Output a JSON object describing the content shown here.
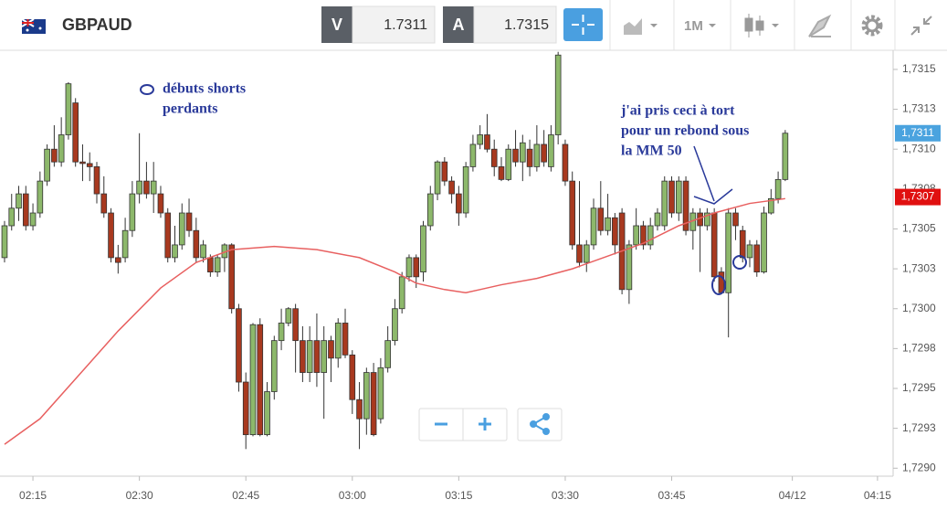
{
  "toolbar": {
    "symbol": "GBPAUD",
    "sell_label": "V",
    "sell_price": "1.7311",
    "buy_label": "A",
    "buy_price": "1.7315",
    "timeframe": "1M"
  },
  "chart_data": {
    "type": "candlestick",
    "up_color": "#8db86b",
    "down_color": "#a8391f",
    "open": [
      1.73032,
      1.73052,
      1.73063,
      1.73072,
      1.73052,
      1.7306,
      1.7308,
      1.731,
      1.73092,
      1.73109,
      1.73129,
      1.73092,
      1.73091,
      1.73089,
      1.73072,
      1.7306,
      1.73032,
      1.73032,
      1.73049,
      1.73072,
      1.7308,
      1.73072,
      1.73072,
      1.7306,
      1.73032,
      1.7304,
      1.7306,
      1.73049,
      1.73032,
      1.73032,
      1.73023,
      1.73032,
      1.7304,
      1.73,
      1.72954,
      1.72921,
      1.7299,
      1.72921,
      1.72948,
      1.7298,
      1.72991,
      1.73,
      1.7298,
      1.7296,
      1.7298,
      1.7296,
      1.7298,
      1.72969,
      1.72991,
      1.72971,
      1.72943,
      1.72931,
      1.7296,
      1.72931,
      1.72963,
      1.7298,
      1.73,
      1.7302,
      1.73032,
      1.73023,
      1.73052,
      1.73072,
      1.73092,
      1.7308,
      1.73072,
      1.7306,
      1.73089,
      1.73103,
      1.73109,
      1.731,
      1.73089,
      1.73081,
      1.731,
      1.73092,
      1.731,
      1.73089,
      1.73103,
      1.73089,
      1.73109,
      1.73103,
      1.7308,
      1.7304,
      1.73029,
      1.7304,
      1.73063,
      1.73049,
      1.73057,
      1.7306,
      1.73012,
      1.7304,
      1.73052,
      1.7304,
      1.73052,
      1.73052,
      1.7308,
      1.7306,
      1.7308,
      1.73049,
      1.7306,
      1.73052,
      1.7306,
      1.73023,
      1.7301,
      1.7306,
      1.73049,
      1.73032,
      1.7304,
      1.73023,
      1.7306,
      1.73069,
      1.73081
    ],
    "high": [
      1.73055,
      1.73072,
      1.73077,
      1.73077,
      1.73066,
      1.73086,
      1.73103,
      1.73115,
      1.7312,
      1.73142,
      1.73132,
      1.73103,
      1.73098,
      1.73092,
      1.73083,
      1.73063,
      1.7304,
      1.73057,
      1.7308,
      1.7311,
      1.73092,
      1.73092,
      1.73077,
      1.73063,
      1.73052,
      1.73066,
      1.73069,
      1.73057,
      1.73043,
      1.73034,
      1.73034,
      1.73041,
      1.73041,
      1.73003,
      1.7296,
      1.72991,
      1.72994,
      1.72954,
      1.72983,
      1.73,
      1.73001,
      1.73003,
      1.72989,
      1.72989,
      1.72997,
      1.72989,
      1.72983,
      1.72994,
      1.73,
      1.72974,
      1.72954,
      1.72963,
      1.72966,
      1.72969,
      1.72989,
      1.73006,
      1.73023,
      1.73034,
      1.73034,
      1.73055,
      1.73077,
      1.73093,
      1.73095,
      1.73083,
      1.73077,
      1.73092,
      1.73109,
      1.73115,
      1.73122,
      1.73106,
      1.73095,
      1.73103,
      1.73112,
      1.73109,
      1.73106,
      1.73115,
      1.73112,
      1.73115,
      1.73161,
      1.73106,
      1.73086,
      1.7308,
      1.73043,
      1.73069,
      1.7308,
      1.73072,
      1.7306,
      1.73063,
      1.73043,
      1.73063,
      1.73055,
      1.73057,
      1.73063,
      1.73083,
      1.73083,
      1.73083,
      1.73083,
      1.73063,
      1.73063,
      1.73063,
      1.73063,
      1.73026,
      1.73063,
      1.73063,
      1.73052,
      1.73043,
      1.73043,
      1.73064,
      1.73075,
      1.73086,
      1.73112
    ],
    "low": [
      1.73029,
      1.73049,
      1.73055,
      1.73049,
      1.73049,
      1.73057,
      1.73077,
      1.73089,
      1.73089,
      1.73106,
      1.73089,
      1.7308,
      1.7308,
      1.73066,
      1.73057,
      1.73029,
      1.73022,
      1.73029,
      1.73045,
      1.73066,
      1.73069,
      1.7306,
      1.73057,
      1.73029,
      1.73029,
      1.73037,
      1.73045,
      1.73029,
      1.73029,
      1.7302,
      1.7302,
      1.73023,
      1.72997,
      1.72948,
      1.72912,
      1.7292,
      1.7292,
      1.7292,
      1.72943,
      1.72974,
      1.72989,
      1.7296,
      1.72954,
      1.72954,
      1.72951,
      1.72931,
      1.72954,
      1.72963,
      1.72969,
      1.72934,
      1.72912,
      1.72921,
      1.7292,
      1.72928,
      1.7296,
      1.72977,
      1.72997,
      1.73017,
      1.73013,
      1.73017,
      1.73049,
      1.73068,
      1.73077,
      1.73066,
      1.73052,
      1.73057,
      1.73086,
      1.731,
      1.73098,
      1.73083,
      1.7308,
      1.7308,
      1.73089,
      1.7308,
      1.73083,
      1.73086,
      1.73089,
      1.73086,
      1.73103,
      1.73077,
      1.73037,
      1.73026,
      1.73023,
      1.73037,
      1.73046,
      1.73046,
      1.73034,
      1.73009,
      1.73003,
      1.73037,
      1.73037,
      1.73037,
      1.73049,
      1.73049,
      1.73057,
      1.73055,
      1.73046,
      1.73037,
      1.73023,
      1.73049,
      1.73017,
      1.73009,
      1.72982,
      1.73043,
      1.73029,
      1.73026,
      1.7302,
      1.73022,
      1.73059,
      1.73066,
      1.7308
    ],
    "close": [
      1.73052,
      1.73063,
      1.73072,
      1.73052,
      1.7306,
      1.7308,
      1.731,
      1.73092,
      1.73109,
      1.73141,
      1.73092,
      1.73091,
      1.73089,
      1.73072,
      1.7306,
      1.73032,
      1.73029,
      1.73049,
      1.73072,
      1.7308,
      1.73072,
      1.7308,
      1.7306,
      1.73032,
      1.7304,
      1.7306,
      1.73049,
      1.73032,
      1.7304,
      1.73023,
      1.73032,
      1.7304,
      1.73,
      1.72954,
      1.72921,
      1.7299,
      1.72921,
      1.72948,
      1.7298,
      1.72991,
      1.73,
      1.7298,
      1.7296,
      1.7298,
      1.7296,
      1.7298,
      1.72969,
      1.72991,
      1.72971,
      1.72943,
      1.72931,
      1.7296,
      1.72921,
      1.72963,
      1.7298,
      1.73,
      1.7302,
      1.73032,
      1.7302,
      1.73052,
      1.73072,
      1.73092,
      1.7308,
      1.73072,
      1.7306,
      1.73089,
      1.73103,
      1.73109,
      1.731,
      1.73089,
      1.73081,
      1.731,
      1.73092,
      1.73104,
      1.73089,
      1.73103,
      1.73092,
      1.73109,
      1.73159,
      1.7308,
      1.7304,
      1.73029,
      1.7304,
      1.73063,
      1.73049,
      1.73057,
      1.7304,
      1.73012,
      1.7304,
      1.73052,
      1.7304,
      1.73052,
      1.7306,
      1.7308,
      1.7306,
      1.7308,
      1.73049,
      1.7306,
      1.73052,
      1.7306,
      1.7302,
      1.7301,
      1.7306,
      1.73052,
      1.73032,
      1.7304,
      1.73023,
      1.7306,
      1.73069,
      1.73081,
      1.7311
    ],
    "moving_average": {
      "color": "#e86060",
      "x": [
        0,
        5,
        12,
        16,
        22,
        27,
        32,
        38,
        44,
        50,
        55,
        58,
        62,
        65,
        67,
        70,
        75,
        80,
        85,
        90,
        95,
        100,
        105,
        110
      ],
      "values": [
        1.72915,
        1.72931,
        1.72966,
        1.72986,
        1.73013,
        1.73029,
        1.73037,
        1.73039,
        1.73037,
        1.73032,
        1.73023,
        1.73016,
        1.73012,
        1.7301,
        1.73012,
        1.73015,
        1.73019,
        1.73025,
        1.73033,
        1.73041,
        1.73052,
        1.7306,
        1.73066,
        1.73069
      ]
    },
    "xlim": [
      -0.64,
      125.2
    ],
    "ylim": [
      1.72895,
      1.73162
    ],
    "xticks": [
      {
        "value": 4,
        "label": "02:15"
      },
      {
        "value": 19,
        "label": "02:30"
      },
      {
        "value": 34,
        "label": "02:45"
      },
      {
        "value": 49,
        "label": "03:00"
      },
      {
        "value": 64,
        "label": "03:15"
      },
      {
        "value": 79,
        "label": "03:30"
      },
      {
        "value": 94,
        "label": "03:45"
      },
      {
        "value": 111,
        "label": "04/12"
      },
      {
        "value": 123,
        "label": "04:15"
      }
    ],
    "yticks": [
      {
        "value": 1.7315,
        "label": "1,7315"
      },
      {
        "value": 1.73125,
        "label": "1,7313"
      },
      {
        "value": 1.731,
        "label": "1,7310"
      },
      {
        "value": 1.73075,
        "label": "1,7308"
      },
      {
        "value": 1.7305,
        "label": "1,7305"
      },
      {
        "value": 1.73025,
        "label": "1,7303"
      },
      {
        "value": 1.73,
        "label": "1,7300"
      },
      {
        "value": 1.72975,
        "label": "1,7298"
      },
      {
        "value": 1.7295,
        "label": "1,7295"
      },
      {
        "value": 1.72925,
        "label": "1,7293"
      },
      {
        "value": 1.729,
        "label": "1,7290"
      }
    ],
    "price_badges": [
      {
        "value": 1.7311,
        "label": "1,7311",
        "color": "#4aa3df"
      },
      {
        "value": 1.7307,
        "label": "1,7307",
        "color": "#e01010"
      }
    ],
    "annotations": [
      {
        "lines": [
          "débuts shorts",
          "perdants"
        ]
      },
      {
        "lines": [
          "j'ai pris ceci à tort",
          "pour un rebond sous",
          "la MM 50"
        ]
      }
    ]
  }
}
